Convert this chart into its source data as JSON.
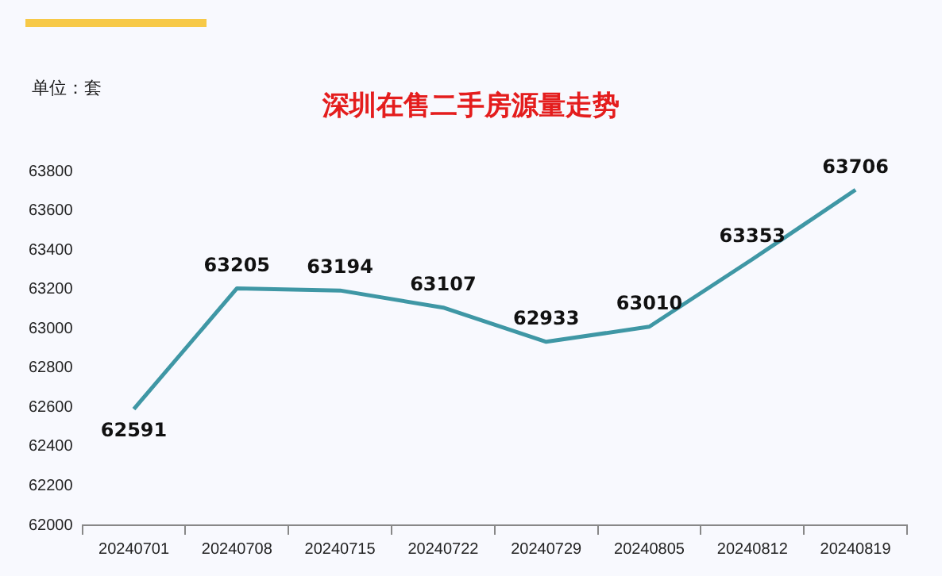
{
  "chart_data": {
    "type": "line",
    "title": "深圳在售二手房源量走势",
    "annotations": [
      "单位：套"
    ],
    "categories": [
      "20240701",
      "20240708",
      "20240715",
      "20240722",
      "20240729",
      "20240805",
      "20240812",
      "20240819"
    ],
    "series": [
      {
        "color": "#3f97a5",
        "values": [
          62591,
          63205,
          63194,
          63107,
          62933,
          63010,
          63353,
          63706
        ]
      }
    ],
    "ylim": [
      62000,
      63800
    ],
    "yticks": [
      62000,
      62200,
      62400,
      62600,
      62800,
      63000,
      63200,
      63400,
      63600,
      63800
    ],
    "grid": false,
    "legend": false,
    "marker": "none",
    "line_style": "solid",
    "data_labels": true
  }
}
